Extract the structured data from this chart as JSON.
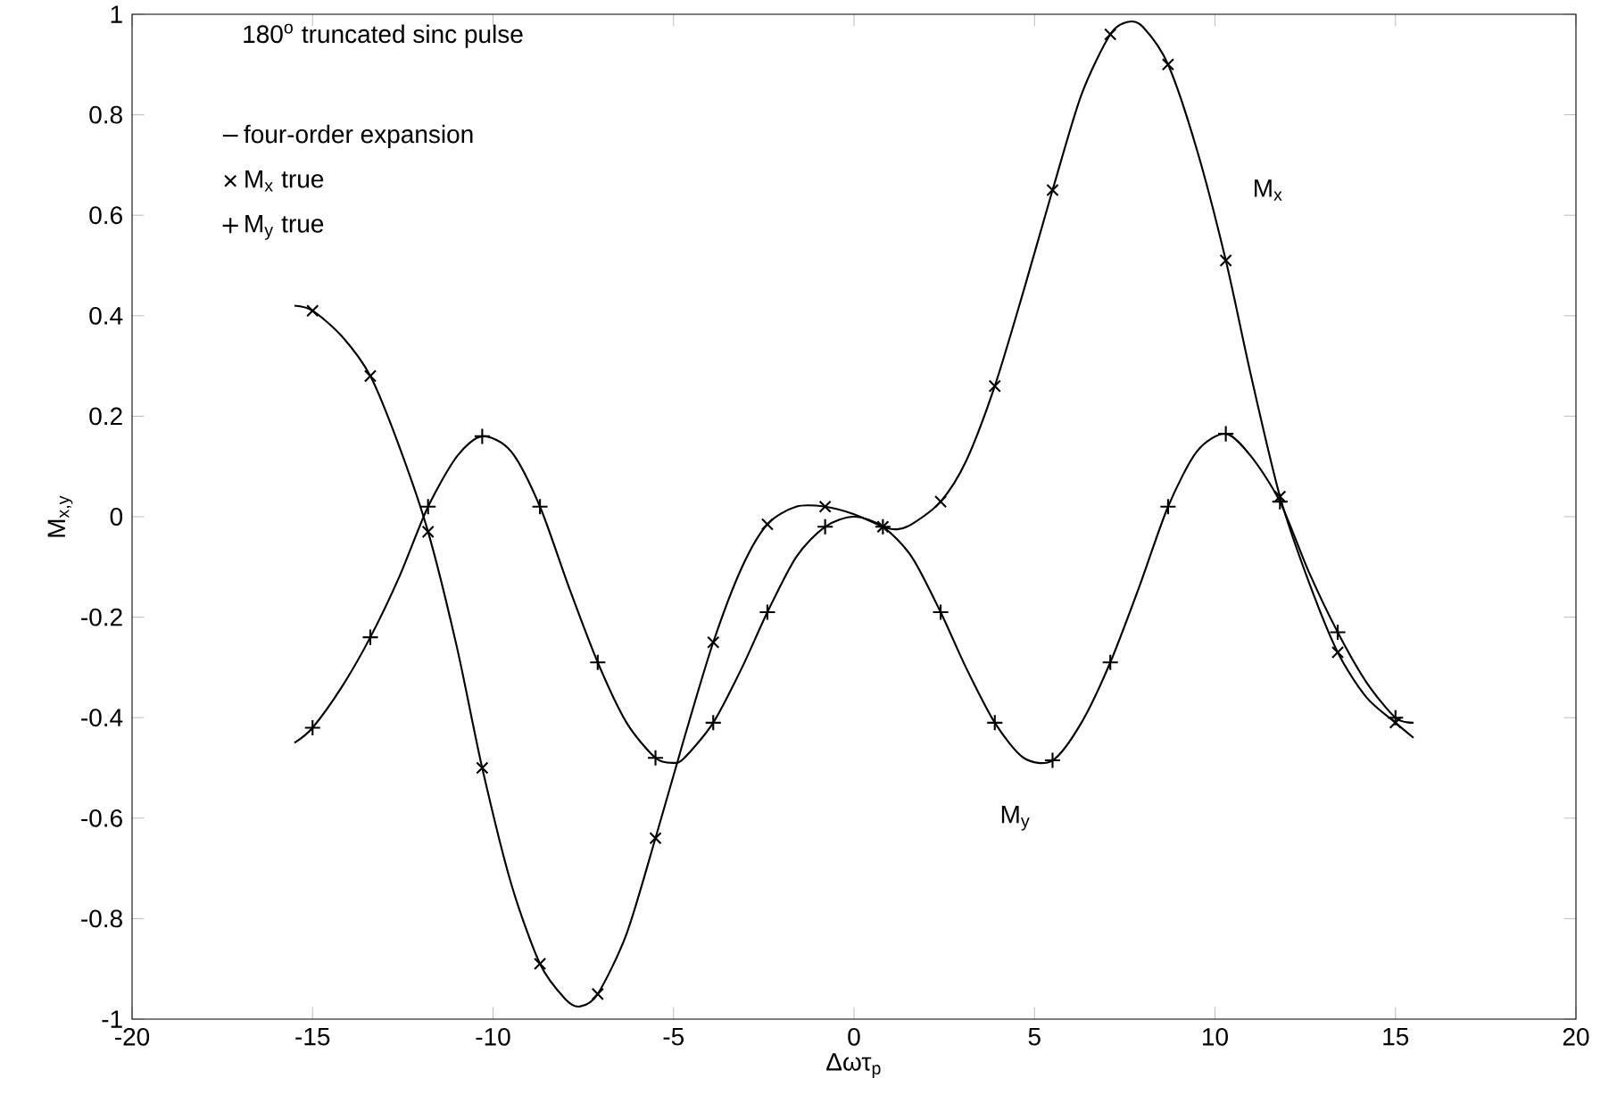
{
  "chart_data": {
    "type": "line",
    "title": "180$^{o}$ truncated sinc pulse",
    "xlabel": "Δωτ$_{p}$",
    "ylabel": "M$_{x,y}$",
    "xlim": [
      -20,
      20
    ],
    "ylim": [
      -1,
      1
    ],
    "xticks": [
      -20,
      -15,
      -10,
      -5,
      0,
      5,
      10,
      15,
      20
    ],
    "yticks": [
      -1,
      -0.8,
      -0.6,
      -0.4,
      -0.2,
      0,
      0.2,
      0.4,
      0.6,
      0.8,
      1
    ],
    "grid": false,
    "legend": "top left",
    "line_style": "solid",
    "annotations": [
      "M$_{x}$",
      "M$_{y}$"
    ],
    "series": [
      {
        "name": "four-order expansion",
        "marker": "none",
        "color": "#000000",
        "x": [
          -15.5,
          -15,
          -14.2,
          -13.4,
          -12.6,
          -11.8,
          -11,
          -10.3,
          -9.5,
          -8.7,
          -8,
          -7.6,
          -7.1,
          -6.3,
          -5.5,
          -4.7,
          -3.9,
          -3.1,
          -2.4,
          -1.6,
          -0.8,
          0,
          0.8,
          1.2,
          1.6,
          2.4,
          3.1,
          3.9,
          4.7,
          5.5,
          6.3,
          7.1,
          7.6,
          8,
          8.7,
          9.5,
          10.3,
          11,
          11.8,
          12.6,
          13.4,
          14.2,
          15,
          15.5
        ],
        "values": [
          0.42,
          0.41,
          0.36,
          0.28,
          0.14,
          -0.03,
          -0.26,
          -0.5,
          -0.73,
          -0.89,
          -0.96,
          -0.975,
          -0.95,
          -0.83,
          -0.64,
          -0.44,
          -0.25,
          -0.1,
          -0.015,
          0.02,
          0.02,
          0.005,
          -0.02,
          -0.025,
          -0.015,
          0.03,
          0.11,
          0.26,
          0.45,
          0.65,
          0.84,
          0.96,
          0.985,
          0.975,
          0.9,
          0.73,
          0.51,
          0.28,
          0.04,
          -0.13,
          -0.27,
          -0.36,
          -0.41,
          -0.44
        ]
      },
      {
        "marker": "none",
        "color": "#000000",
        "x": [
          -15.5,
          -15,
          -14.2,
          -13.4,
          -12.6,
          -11.8,
          -11,
          -10.3,
          -9.5,
          -8.7,
          -7.9,
          -7.1,
          -6.3,
          -5.5,
          -5,
          -4.7,
          -3.9,
          -3.1,
          -2.4,
          -1.6,
          -0.8,
          0,
          0.8,
          1.6,
          2.4,
          3.1,
          3.9,
          4.7,
          5.5,
          6.3,
          7.1,
          7.9,
          8.7,
          9.5,
          10.3,
          11,
          11.8,
          12.6,
          13.4,
          14.2,
          15,
          15.5
        ],
        "values": [
          -0.45,
          -0.42,
          -0.34,
          -0.24,
          -0.12,
          0.02,
          0.12,
          0.16,
          0.13,
          0.02,
          -0.14,
          -0.29,
          -0.41,
          -0.48,
          -0.49,
          -0.48,
          -0.41,
          -0.3,
          -0.19,
          -0.08,
          -0.02,
          0.0,
          -0.02,
          -0.08,
          -0.19,
          -0.3,
          -0.41,
          -0.48,
          -0.485,
          -0.41,
          -0.29,
          -0.14,
          0.02,
          0.13,
          0.165,
          0.12,
          0.03,
          -0.11,
          -0.23,
          -0.33,
          -0.4,
          -0.41
        ]
      },
      {
        "name": "M$_{x}$ true",
        "type": "scatter",
        "marker": "cross",
        "color": "#000000",
        "x": [
          -15,
          -13.4,
          -11.8,
          -10.3,
          -8.7,
          -7.1,
          -5.5,
          -3.9,
          -2.4,
          -0.8,
          0.8,
          2.4,
          3.9,
          5.5,
          7.1,
          8.7,
          10.3,
          11.8,
          13.4,
          15
        ],
        "values": [
          0.41,
          0.28,
          -0.03,
          -0.5,
          -0.89,
          -0.95,
          -0.64,
          -0.25,
          -0.015,
          0.02,
          -0.02,
          0.03,
          0.26,
          0.65,
          0.96,
          0.9,
          0.51,
          0.04,
          -0.27,
          -0.41
        ]
      },
      {
        "name": "M$_{y}$ true",
        "type": "scatter",
        "marker": "plus",
        "color": "#000000",
        "x": [
          -15,
          -13.4,
          -11.8,
          -10.3,
          -8.7,
          -7.1,
          -5.5,
          -3.9,
          -2.4,
          -0.8,
          0.8,
          2.4,
          3.9,
          5.5,
          7.1,
          8.7,
          10.3,
          11.8,
          13.4,
          15
        ],
        "values": [
          -0.42,
          -0.24,
          0.02,
          0.16,
          0.02,
          -0.29,
          -0.48,
          -0.41,
          -0.19,
          -0.02,
          -0.02,
          -0.19,
          -0.41,
          -0.485,
          -0.29,
          0.02,
          0.165,
          0.03,
          -0.23,
          -0.4
        ]
      }
    ]
  }
}
